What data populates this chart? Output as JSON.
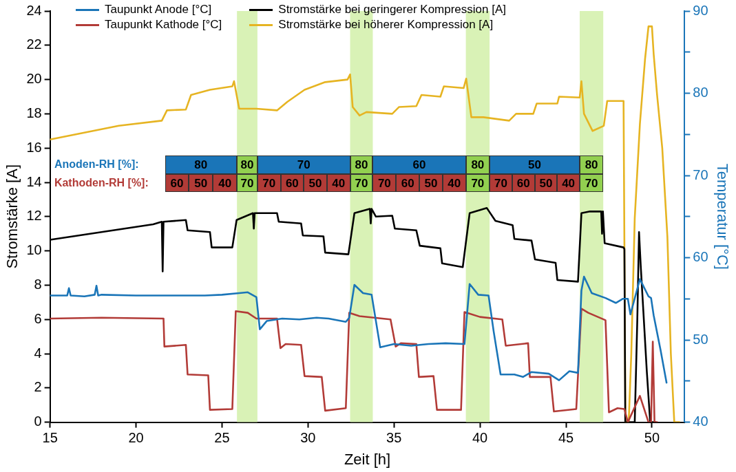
{
  "chart_data": {
    "type": "line",
    "xlabel": "Zeit [h]",
    "ylabel": "Stromstärke [A]",
    "y2label": "Temperatur [°C]",
    "xlim": [
      15,
      51.9
    ],
    "xticks": [
      15,
      20,
      25,
      30,
      35,
      40,
      45,
      50
    ],
    "ylim": [
      0,
      24
    ],
    "yticks": [
      0,
      2,
      4,
      6,
      8,
      10,
      12,
      14,
      16,
      18,
      20,
      22,
      24
    ],
    "y2lim": [
      40,
      90
    ],
    "y2ticks": [
      40,
      {
        "value": 45,
        "label": null
      },
      50,
      {
        "value": 55,
        "label": null
      },
      60,
      {
        "value": 65,
        "label": null
      },
      70,
      {
        "value": 75,
        "label": null
      },
      80,
      {
        "value": 85,
        "label": null
      },
      90
    ],
    "grid": false,
    "legend": "top",
    "marker": "none",
    "line_style": "solid",
    "series": [
      {
        "name": "Taupunkt Anode [°C]",
        "color": "#1a75b8",
        "axis": "y2",
        "x": [
          15,
          16,
          16.1,
          16.2,
          17,
          17.6,
          17.7,
          17.8,
          18,
          20,
          22,
          24,
          25,
          26,
          26.5,
          27,
          27.2,
          27.6,
          28.5,
          29.5,
          30.5,
          31.2,
          32.2,
          32.4,
          32.7,
          33.2,
          33.7,
          34.2,
          35,
          36,
          37,
          38,
          39.1,
          39.4,
          39.9,
          40.5,
          40.8,
          41.2,
          42,
          42.5,
          43,
          44,
          44.6,
          45.2,
          45.7,
          45.9,
          46.05,
          46.5,
          47.3,
          47.9,
          48.3,
          48.6,
          48.75,
          49.3,
          49.8,
          49.95,
          50.1,
          50.5,
          50.85
        ],
        "values": [
          55.4,
          55.4,
          56.3,
          55.4,
          55.3,
          55.5,
          56.6,
          55.4,
          55.5,
          55.4,
          55.4,
          55.4,
          55.5,
          55.7,
          55.8,
          55.2,
          51.3,
          52.3,
          52.6,
          52.5,
          52.7,
          52.6,
          52.2,
          52.7,
          56.7,
          55.7,
          55.5,
          49.1,
          49.5,
          49.3,
          49.5,
          49.6,
          49.5,
          56.8,
          55.5,
          55.4,
          51,
          45.8,
          45.8,
          45.5,
          46.1,
          45.9,
          45.1,
          46.2,
          46.0,
          56,
          57.7,
          55.7,
          55.1,
          54.5,
          55.0,
          55.0,
          53.1,
          57.4,
          55.3,
          55.1,
          53,
          48.8,
          44.8
        ]
      },
      {
        "name": "Taupunkt Kathode [°C]",
        "color": "#b23b37",
        "axis": "y2",
        "x": [
          15,
          18,
          21.6,
          21.65,
          22.9,
          23.0,
          24.2,
          24.3,
          25.6,
          25.8,
          26.5,
          27,
          28.2,
          28.4,
          28.7,
          29.6,
          29.8,
          30.8,
          31.0,
          32.2,
          32.4,
          33,
          34.8,
          35.1,
          35.4,
          36.3,
          36.45,
          37.3,
          37.5,
          38.9,
          39.1,
          40,
          41.3,
          41.5,
          42.8,
          42.9,
          44.1,
          44.3,
          45.6,
          45.9,
          46.3,
          47.3,
          47.5,
          48.0,
          48.4,
          48.6,
          49.3,
          49.8,
          49.95,
          50.05,
          50.15,
          50.3
        ],
        "values": [
          52.6,
          52.7,
          52.6,
          49.2,
          49.4,
          45.8,
          45.7,
          41.5,
          41.6,
          53.5,
          53.3,
          52.6,
          52.6,
          49.0,
          49.5,
          49.4,
          45.6,
          45.5,
          41.4,
          41.7,
          53.3,
          52.9,
          52.5,
          49.2,
          49.6,
          49.5,
          45.5,
          45.6,
          41.5,
          41.5,
          53.4,
          52.8,
          52.5,
          49.3,
          49.6,
          45.5,
          45.5,
          41.3,
          41.6,
          53.8,
          53.3,
          52.4,
          41.2,
          41.7,
          41.6,
          40.0,
          43.2,
          40.0,
          40.0,
          49.8,
          40.0,
          40.0
        ]
      },
      {
        "name": "Stromstärke bei geringerer Kompression [A]",
        "color": "#000000",
        "x": [
          15,
          17,
          19,
          21,
          21.5,
          21.55,
          21.6,
          22.9,
          23.0,
          24.3,
          24.4,
          25.6,
          25.85,
          26.8,
          26.85,
          26.9,
          28.2,
          28.3,
          29.6,
          29.7,
          30.9,
          31.0,
          32.35,
          32.7,
          33.6,
          33.65,
          33.7,
          33.95,
          34.9,
          35.05,
          36.3,
          36.5,
          37.7,
          37.8,
          39.0,
          39.4,
          40.4,
          40.9,
          41.9,
          42.0,
          43.0,
          43.2,
          44.4,
          44.5,
          45.7,
          45.9,
          46.4,
          47.05,
          47.1,
          47.15,
          47.25,
          48.35,
          48.4,
          48.45,
          49.0,
          49.15,
          49.25,
          49.35,
          49.5,
          49.7,
          49.9,
          50.2
        ],
        "values": [
          10.65,
          10.95,
          11.25,
          11.55,
          11.7,
          8.8,
          11.7,
          11.8,
          11.2,
          11.1,
          10.2,
          10.2,
          11.8,
          12.2,
          11.3,
          12.2,
          12.2,
          11.7,
          11.6,
          10.9,
          10.85,
          9.9,
          9.8,
          12.2,
          12.45,
          11.6,
          12.45,
          12.0,
          12.05,
          11.3,
          11.2,
          10.3,
          10.15,
          9.27,
          9.05,
          12.2,
          12.5,
          11.75,
          11.5,
          10.7,
          10.6,
          9.5,
          9.3,
          8.3,
          8.2,
          12.2,
          12.3,
          12.3,
          11.0,
          12.3,
          10.45,
          10.2,
          10.1,
          0,
          0,
          6,
          11.1,
          9.1,
          6.5,
          3,
          0,
          0
        ]
      },
      {
        "name": "Stromstärke bei höherer Kompression [A]",
        "color": "#e6b422",
        "x": [
          15,
          17,
          19,
          21.5,
          21.8,
          22.9,
          23.2,
          24.3,
          25.6,
          25.7,
          26.0,
          27,
          28.2,
          28.8,
          29.8,
          31.0,
          32.3,
          32.45,
          32.6,
          33.0,
          33.4,
          34.9,
          35.3,
          36.3,
          36.6,
          37.7,
          37.9,
          39.05,
          39.2,
          39.5,
          40.2,
          41.7,
          42.1,
          43.1,
          43.3,
          44.5,
          44.6,
          45.8,
          45.9,
          46.05,
          46.55,
          47.2,
          47.4,
          48.35,
          48.46,
          48.65,
          48.8,
          49.0,
          49.3,
          49.6,
          49.8,
          50.0,
          50.1,
          50.3,
          50.6,
          50.9,
          51.1,
          51.3,
          51.6
        ],
        "values": [
          16.5,
          16.9,
          17.3,
          17.6,
          18.2,
          18.25,
          19.1,
          19.4,
          19.6,
          19.9,
          18.3,
          18.3,
          18.2,
          18.7,
          19.4,
          19.85,
          20.0,
          20.3,
          18.4,
          17.9,
          18.1,
          18.0,
          18.4,
          18.45,
          19.1,
          19.0,
          19.6,
          19.5,
          20.05,
          17.8,
          17.8,
          17.6,
          18.0,
          18.0,
          18.6,
          18.6,
          19.0,
          18.95,
          19.9,
          18.0,
          17.0,
          17.3,
          18.75,
          18.75,
          0,
          0,
          4,
          11.9,
          17.4,
          21.2,
          23.1,
          23.1,
          21.5,
          19.1,
          16.0,
          10.8,
          4,
          0,
          0
        ]
      }
    ],
    "bands": [
      {
        "axis": "x",
        "from": 25.87,
        "to": 27.06,
        "color": "#d9f2b6"
      },
      {
        "axis": "x",
        "from": 32.45,
        "to": 33.77,
        "color": "#d9f2b6"
      },
      {
        "axis": "x",
        "from": 39.18,
        "to": 40.56,
        "color": "#d9f2b6"
      },
      {
        "axis": "x",
        "from": 45.8,
        "to": 47.17,
        "color": "#d9f2b6"
      }
    ],
    "annotations": [
      "Anoden-RH [%]:",
      "80",
      "80",
      "70",
      "80",
      "60",
      "80",
      "50",
      "80",
      "Kathoden-RH [%]:",
      "60",
      "50",
      "40",
      "70",
      "70",
      "60",
      "50",
      "40",
      "70",
      "70",
      "60",
      "50",
      "40",
      "70",
      "70",
      "60",
      "50",
      "40",
      "70"
    ]
  }
}
